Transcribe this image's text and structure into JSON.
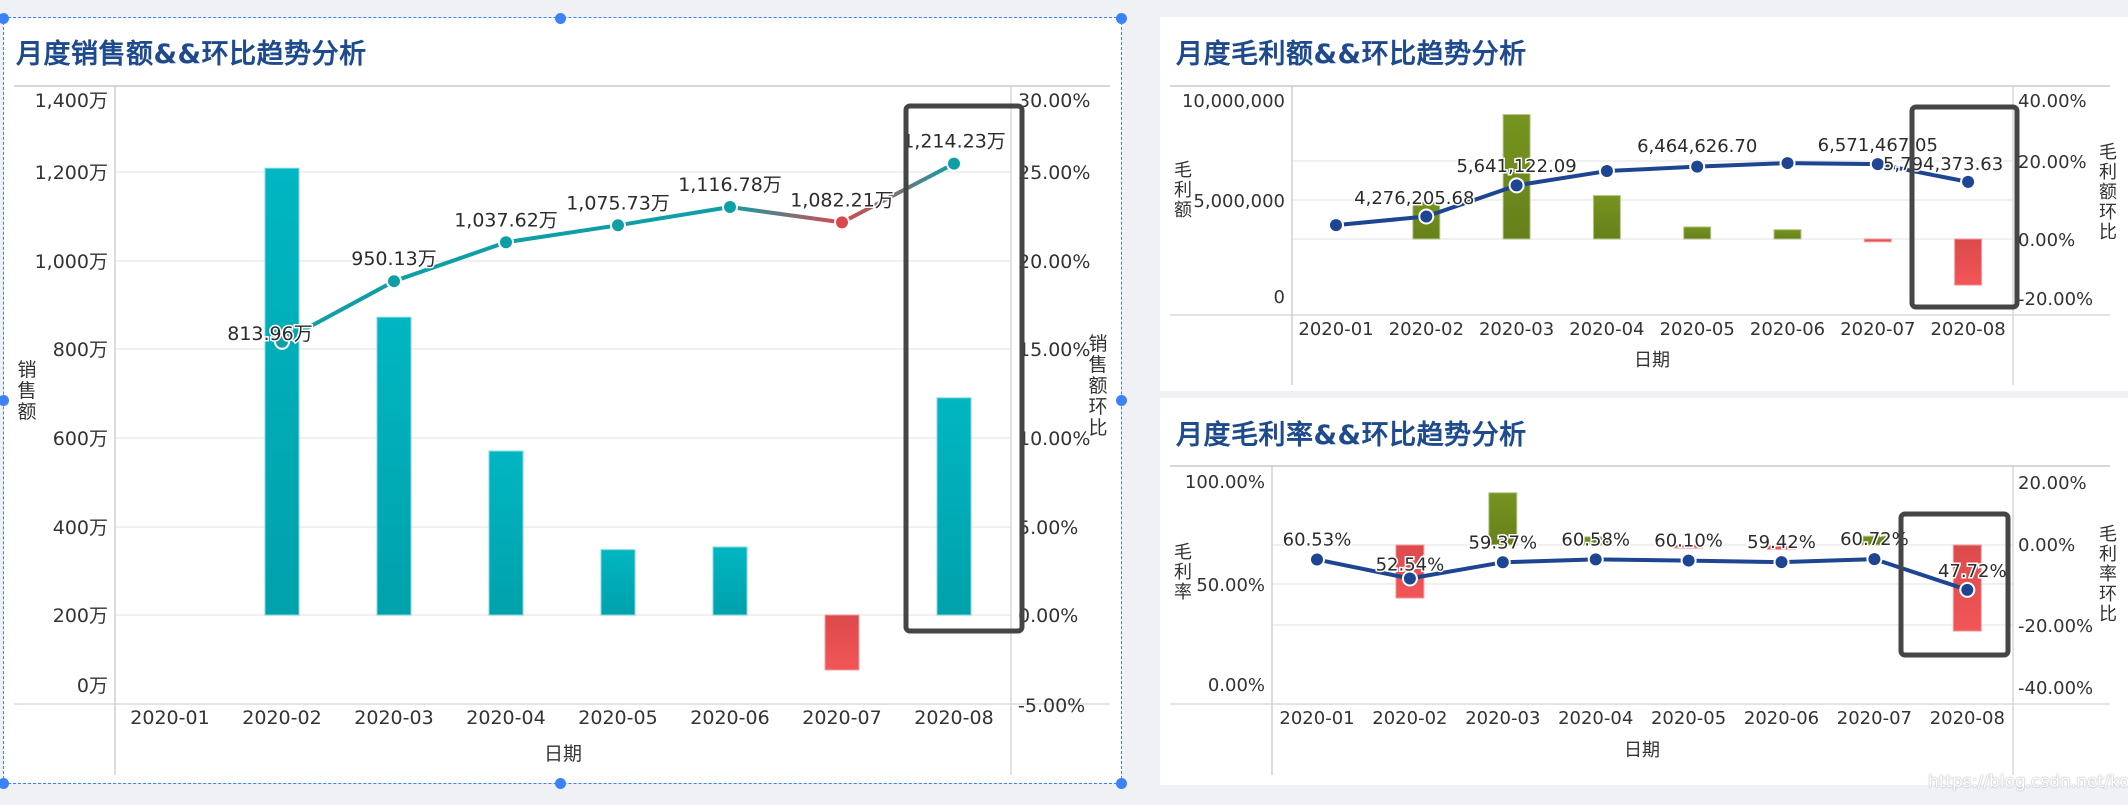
{
  "sales_panel": {
    "title": "月度销售额&&环比趋势分析",
    "y_axis_title": "销售额",
    "y2_axis_title": "销售额环比",
    "x_axis_title": "日期"
  },
  "gross_profit_panel": {
    "title": "月度毛利额&&环比趋势分析",
    "y_axis_title": "毛利额",
    "y2_axis_title": "毛利额环比",
    "x_axis_title": "日期"
  },
  "gross_margin_panel": {
    "title": "月度毛利率&&环比趋势分析",
    "y_axis_title": "毛利率",
    "y2_axis_title": "毛利率环比",
    "x_axis_title": "日期"
  },
  "watermark": "https://blog.csdn.net/koksir",
  "colors": {
    "title": "#1e4a8e",
    "sales_bar": "#00b0bd",
    "sales_line": "#0e9fa6",
    "negative": "#e84d4f",
    "olive_bar": "#6f8c1f",
    "navy_line": "#1d4592",
    "highlight_box": "#454545",
    "selection": "#3b82f6"
  },
  "chart_data": [
    {
      "id": "sales",
      "type": "bar+line",
      "title": "月度销售额&&环比趋势分析",
      "xlabel": "日期",
      "ylabel": "销售额",
      "y2label": "销售额环比",
      "categories": [
        "2020-01",
        "2020-02",
        "2020-03",
        "2020-04",
        "2020-05",
        "2020-06",
        "2020-07",
        "2020-08"
      ],
      "y_ticks": [
        "0万",
        "200万",
        "400万",
        "600万",
        "800万",
        "1,000万",
        "1,200万",
        "1,400万"
      ],
      "y_range": [
        0,
        1400
      ],
      "y2_ticks": [
        "-5.00%",
        "0.00%",
        "5.00%",
        "10.00%",
        "15.00%",
        "20.00%",
        "25.00%",
        "30.00%"
      ],
      "y2_range": [
        -5,
        30
      ],
      "series": [
        {
          "name": "销售额",
          "kind": "line",
          "axis": "left",
          "unit": "万",
          "values": [
            null,
            813.96,
            950.13,
            1037.62,
            1075.73,
            1116.78,
            1082.21,
            1214.23
          ],
          "labels": [
            null,
            "813.96万",
            "950.13万",
            "1,037.62万",
            "1,075.73万",
            "1,116.78万",
            "1,082.21万",
            "1,214.23万"
          ]
        },
        {
          "name": "销售额环比",
          "kind": "bar",
          "axis": "right",
          "unit": "%",
          "values": [
            null,
            25.1,
            16.73,
            9.21,
            3.67,
            3.82,
            -3.09,
            12.2
          ]
        }
      ],
      "highlight_category": "2020-08",
      "grid": true
    },
    {
      "id": "gross_profit",
      "type": "bar+line",
      "title": "月度毛利额&&环比趋势分析",
      "xlabel": "日期",
      "ylabel": "毛利额",
      "y2label": "毛利额环比",
      "categories": [
        "2020-01",
        "2020-02",
        "2020-03",
        "2020-04",
        "2020-05",
        "2020-06",
        "2020-07",
        "2020-08"
      ],
      "y_ticks": [
        "0",
        "5,000,000",
        "10,000,000"
      ],
      "y_range": [
        0,
        10000000
      ],
      "y2_ticks": [
        "-20.00%",
        "0.00%",
        "20.00%",
        "40.00%"
      ],
      "y2_range": [
        -20,
        40
      ],
      "series": [
        {
          "name": "毛利额",
          "kind": "line",
          "axis": "left",
          "values": [
            3900000,
            4276205.68,
            5641122.09,
            6270000,
            6464626.7,
            6620000,
            6571467.05,
            5794373.63
          ],
          "labels": [
            null,
            "4,276,205.68",
            "5,641,122.09",
            null,
            "6,464,626.70",
            null,
            "6,571,467.05",
            "5,794,373.63"
          ]
        },
        {
          "name": "毛利额环比",
          "kind": "bar",
          "axis": "right",
          "unit": "%",
          "values": [
            null,
            9.6,
            31.92,
            11.15,
            3.1,
            2.4,
            -0.73,
            -11.83
          ]
        }
      ],
      "highlight_category": "2020-08",
      "grid": true
    },
    {
      "id": "gross_margin",
      "type": "bar+line",
      "title": "月度毛利率&&环比趋势分析",
      "xlabel": "日期",
      "ylabel": "毛利率",
      "y2label": "毛利率环比",
      "categories": [
        "2020-01",
        "2020-02",
        "2020-03",
        "2020-04",
        "2020-05",
        "2020-06",
        "2020-07",
        "2020-08"
      ],
      "y_ticks": [
        "0.00%",
        "50.00%",
        "100.00%"
      ],
      "y_range": [
        0,
        100
      ],
      "y2_ticks": [
        "-40.00%",
        "-20.00%",
        "0.00%",
        "20.00%"
      ],
      "y2_range": [
        -40,
        20
      ],
      "series": [
        {
          "name": "毛利率",
          "kind": "line",
          "axis": "left",
          "unit": "%",
          "values": [
            60.53,
            52.54,
            59.37,
            60.58,
            60.1,
            59.42,
            60.72,
            47.72
          ],
          "labels": [
            "60.53%",
            "52.54%",
            "59.37%",
            "60.58%",
            "60.10%",
            "59.42%",
            "60.72%",
            "47.72%"
          ]
        },
        {
          "name": "毛利率环比",
          "kind": "bar",
          "axis": "right",
          "unit": "%",
          "values": [
            null,
            -13.2,
            13.0,
            2.04,
            -0.79,
            -1.13,
            2.19,
            -21.41
          ]
        }
      ],
      "highlight_category": "2020-08",
      "grid": true
    }
  ]
}
